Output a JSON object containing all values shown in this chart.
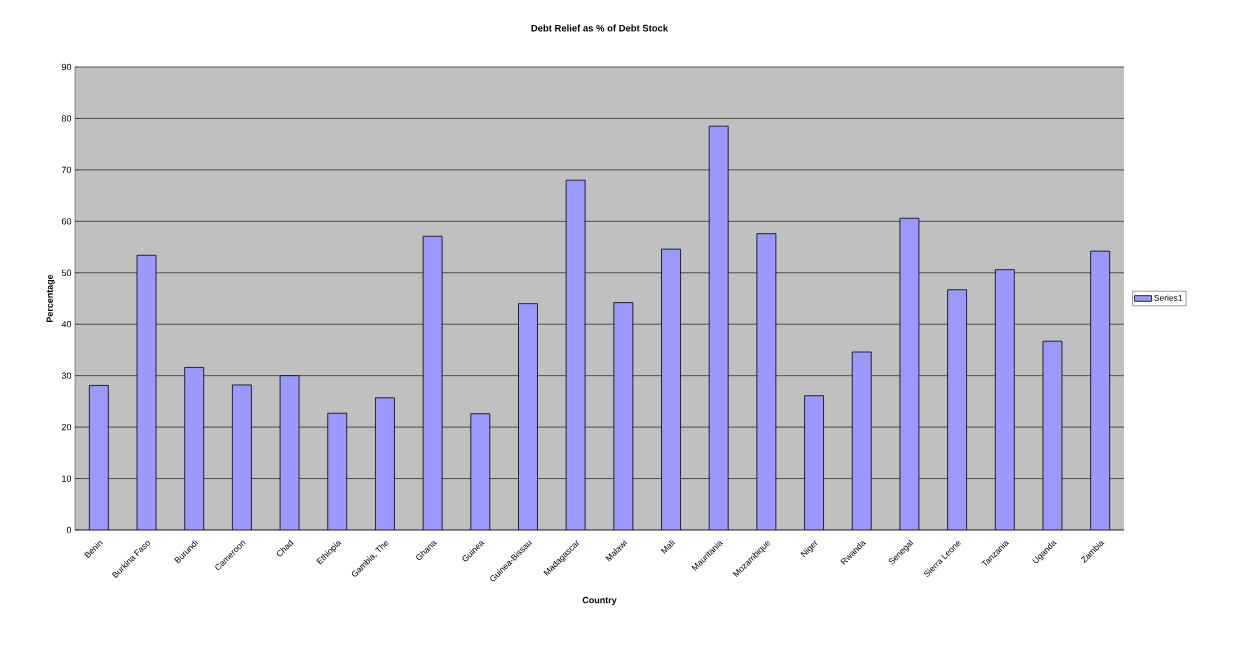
{
  "chart_data": {
    "type": "bar",
    "title": "Debt Relief as % of Debt Stock",
    "xlabel": "Country",
    "ylabel": "Percentage",
    "categories": [
      "Benin",
      "Burkina Faso",
      "Burundi",
      "Cameroon",
      "Chad",
      "Ethiopia",
      "Gambia, The",
      "Ghana",
      "Guinea",
      "Guinea-Bissau",
      "Madagascar",
      "Malawi",
      "Mali",
      "Mauritania",
      "Mozambique",
      "Niger",
      "Rwanda",
      "Senegal",
      "Sierra Leone",
      "Tanzania",
      "Uganda",
      "Zambia"
    ],
    "series": [
      {
        "name": "Series1",
        "color": "#9999ff",
        "values": [
          28.1,
          53.4,
          31.6,
          28.2,
          30.0,
          22.7,
          25.7,
          57.1,
          22.6,
          44.0,
          68.0,
          44.2,
          54.6,
          78.5,
          57.6,
          26.1,
          34.6,
          60.6,
          46.7,
          50.6,
          36.7,
          54.2
        ]
      }
    ],
    "ylim": [
      0,
      90
    ],
    "yticks": [
      0,
      10,
      20,
      30,
      40,
      50,
      60,
      70,
      80,
      90
    ],
    "grid": "y",
    "legend": "right"
  }
}
